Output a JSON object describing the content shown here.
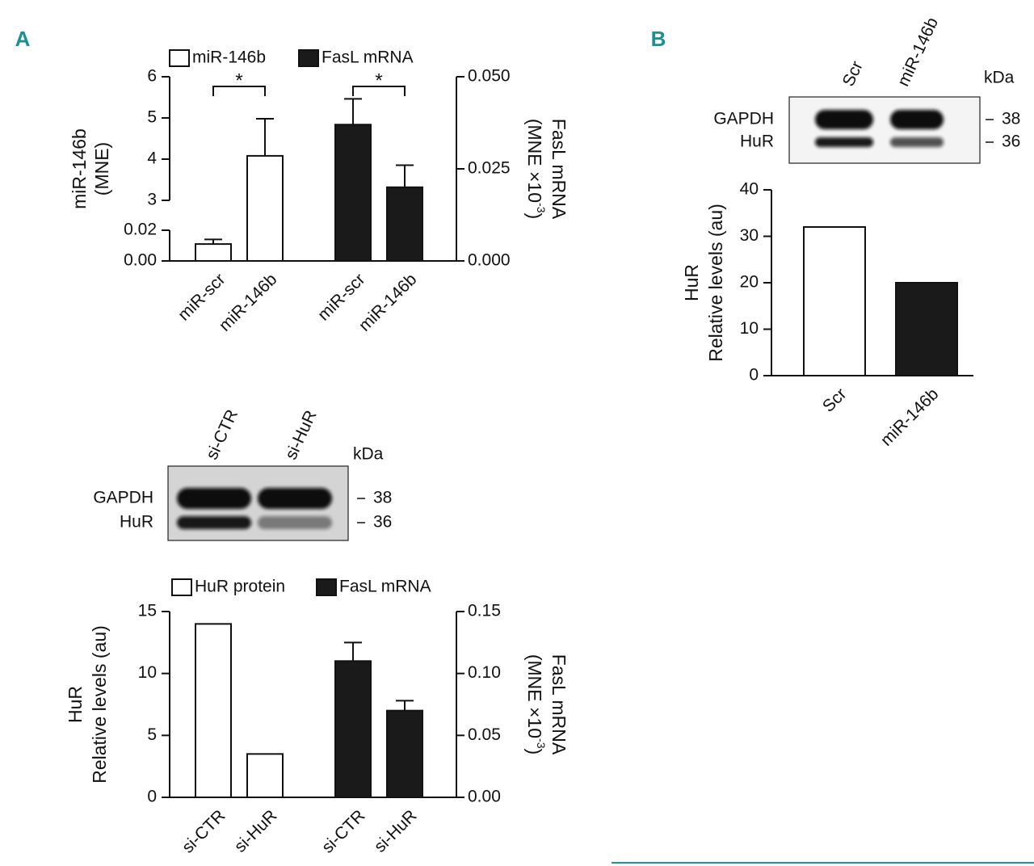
{
  "panels": [
    "A",
    "B"
  ],
  "blots": [
    {
      "lanes": [
        "si-CTR",
        "si-HuR"
      ],
      "bands": [
        "GAPDH",
        "HuR"
      ],
      "markers": [
        38,
        36
      ],
      "unit": "kDa"
    },
    {
      "lanes": [
        "Scr",
        "miR-146b"
      ],
      "bands": [
        "GAPDH",
        "HuR"
      ],
      "markers": [
        38,
        36
      ],
      "unit": "kDa"
    }
  ],
  "chart_data": [
    {
      "type": "bar",
      "categories": [
        "miR-scr",
        "miR-146b",
        "miR-scr",
        "miR-146b"
      ],
      "series": [
        {
          "name": "miR-146b",
          "color": "#ffffff",
          "values": [
            0.011,
            4.08,
            null,
            null
          ],
          "errors": [
            0.003,
            0.9,
            null,
            null
          ]
        },
        {
          "name": "FasL mRNA",
          "color": "#1a1a1a",
          "axis": "y2",
          "values": [
            null,
            null,
            0.037,
            0.02
          ],
          "errors": [
            null,
            null,
            0.007,
            0.006
          ]
        }
      ],
      "y_label": [
        "miR-146b",
        "(MNE)"
      ],
      "y2_label": [
        "FasL mRNA",
        "(MNE ×10"
      ],
      "y2_label_sup": "-3",
      "y2_label_end": ")",
      "ylim": [
        0,
        6
      ],
      "ybreak": [
        0.02,
        3
      ],
      "yticks": [
        {
          "value": 0,
          "label": "0.00"
        },
        {
          "value": 0.02,
          "label": "0.02"
        },
        3,
        4,
        5,
        6
      ],
      "y2lim": [
        0,
        0.05
      ],
      "y2ticks": [
        {
          "value": 0,
          "label": "0.000"
        },
        {
          "value": 0.025,
          "label": "0.025"
        },
        {
          "value": 0.05,
          "label": "0.050"
        }
      ],
      "annotations": [
        "*",
        "*"
      ],
      "legend": "top"
    },
    {
      "type": "bar",
      "categories": [
        "si-CTR",
        "si-HuR",
        "si-CTR",
        "si-HuR"
      ],
      "series": [
        {
          "name": "HuR protein",
          "color": "#ffffff",
          "values": [
            14,
            3.5,
            null,
            null
          ]
        },
        {
          "name": "FasL mRNA",
          "color": "#1a1a1a",
          "axis": "y2",
          "values": [
            null,
            null,
            0.11,
            0.07
          ],
          "errors": [
            null,
            null,
            0.015,
            0.008
          ]
        }
      ],
      "y_label": [
        "HuR",
        "Relative levels (au)"
      ],
      "y2_label": [
        "FasL mRNA",
        "(MNE ×10"
      ],
      "y2_label_sup": "-3",
      "y2_label_end": ")",
      "ylim": [
        0,
        15
      ],
      "yticks": [
        0,
        5,
        10,
        15
      ],
      "y2lim": [
        0,
        0.15
      ],
      "y2ticks": [
        {
          "value": 0,
          "label": "0.00"
        },
        {
          "value": 0.05,
          "label": "0.05"
        },
        {
          "value": 0.1,
          "label": "0.10"
        },
        {
          "value": 0.15,
          "label": "0.15"
        }
      ],
      "legend": "top"
    },
    {
      "type": "bar",
      "categories": [
        "Scr",
        "miR-146b"
      ],
      "values": [
        32,
        20
      ],
      "colors": [
        "#ffffff",
        "#1a1a1a"
      ],
      "y_label": [
        "HuR",
        "Relative levels (au)"
      ],
      "ylim": [
        0,
        40
      ],
      "yticks": [
        0,
        10,
        20,
        30,
        40
      ]
    }
  ]
}
